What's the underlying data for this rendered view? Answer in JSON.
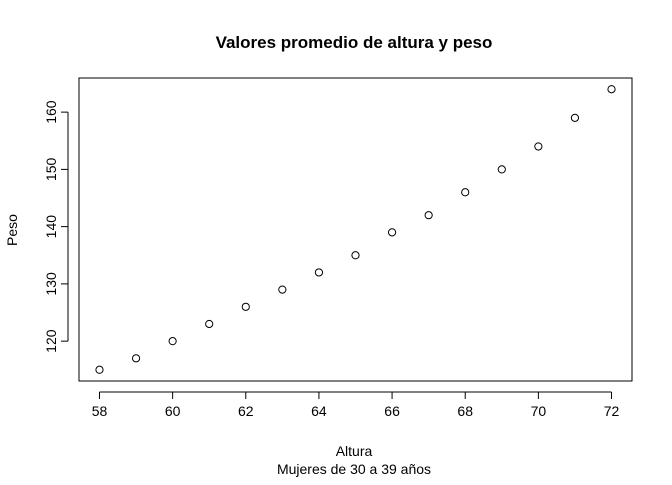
{
  "chart_data": {
    "type": "scatter",
    "title": "Valores promedio de altura y peso",
    "xlabel": "Altura",
    "subtitle": "Mujeres de 30 a 39 años",
    "ylabel": "Peso",
    "x": [
      58,
      59,
      60,
      61,
      62,
      63,
      64,
      65,
      66,
      67,
      68,
      69,
      70,
      71,
      72
    ],
    "y": [
      115,
      117,
      120,
      123,
      126,
      129,
      132,
      135,
      139,
      142,
      146,
      150,
      154,
      159,
      164
    ],
    "xlim": [
      57.44,
      72.56
    ],
    "ylim": [
      113.04,
      165.96
    ],
    "xticks": [
      58,
      60,
      62,
      64,
      66,
      68,
      70,
      72
    ],
    "yticks": [
      120,
      130,
      140,
      150,
      160
    ],
    "grid": false,
    "marker": "open-circle",
    "colors": {
      "points": "#000000",
      "axes": "#000000",
      "background": "#ffffff"
    }
  }
}
